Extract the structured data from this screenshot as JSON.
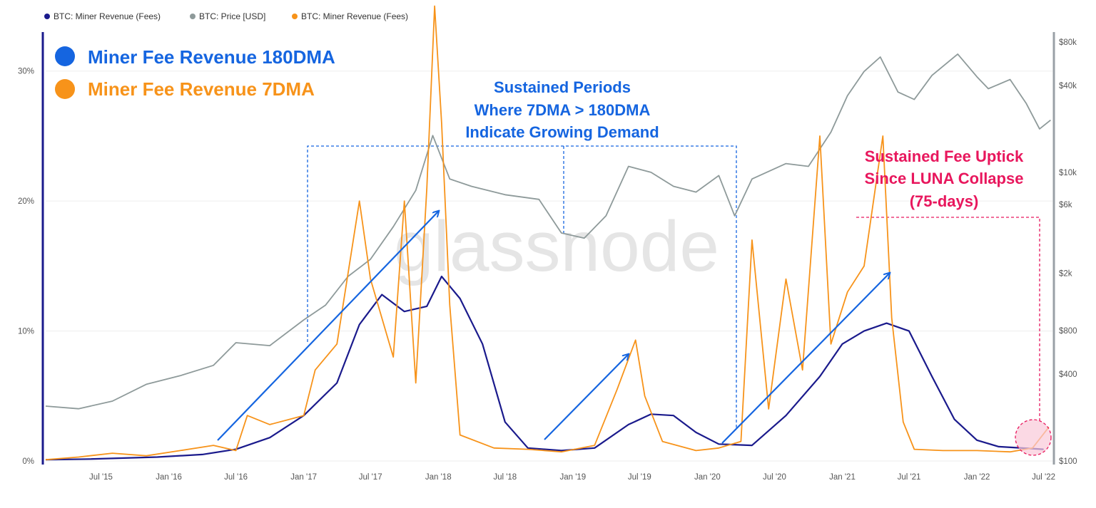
{
  "legend": {
    "items": [
      {
        "label": "BTC: Miner Revenue (Fees)",
        "color": "#1a1a8c"
      },
      {
        "label": "BTC: Price [USD]",
        "color": "#8e9a9a"
      },
      {
        "label": "BTC: Miner Revenue (Fees)",
        "color": "#f7931a"
      }
    ]
  },
  "annotations": {
    "big_legend_180": "Miner Fee Revenue 180DMA",
    "big_legend_7": "Miner Fee Revenue 7DMA",
    "sustained_lines": [
      "Sustained Periods",
      "Where 7DMA > 180DMA",
      "Indicate Growing Demand"
    ],
    "luna_lines": [
      "Sustained Fee Uptick",
      "Since LUNA Collapse",
      "(75-days)"
    ],
    "watermark": "glassnode",
    "colors": {
      "blue": "#1565e0",
      "pink": "#e8175d",
      "circle_fill": "#f9c9d8"
    }
  },
  "chart_data": {
    "type": "line",
    "x_ticks": [
      "Jul '15",
      "Jan '16",
      "Jul '16",
      "Jan '17",
      "Jul '17",
      "Jan '18",
      "Jul '18",
      "Jan '19",
      "Jul '19",
      "Jan '20",
      "Jul '20",
      "Jan '21",
      "Jul '21",
      "Jan '22",
      "Jul '22"
    ],
    "y_left_ticks": [
      "0%",
      "10%",
      "20%",
      "30%"
    ],
    "y_left_range": [
      0,
      33
    ],
    "y_right_ticks": [
      "$100",
      "$400",
      "$800",
      "$2k",
      "$6k",
      "$10k",
      "$40k",
      "$80k"
    ],
    "y_right_scale": "log",
    "y_right_range": [
      100,
      80000
    ],
    "grid": true,
    "legend_position": "top-left",
    "series": [
      {
        "name": "BTC: Miner Revenue (Fees)",
        "axis": "left",
        "color": "#1a1a8c",
        "points": [
          [
            "2015-02-01",
            0.1
          ],
          [
            "2015-06-01",
            0.15
          ],
          [
            "2015-12-01",
            0.3
          ],
          [
            "2016-04-01",
            0.5
          ],
          [
            "2016-07-01",
            0.9
          ],
          [
            "2016-10-01",
            1.8
          ],
          [
            "2017-01-01",
            3.5
          ],
          [
            "2017-04-01",
            6.0
          ],
          [
            "2017-06-01",
            10.5
          ],
          [
            "2017-08-01",
            12.8
          ],
          [
            "2017-10-01",
            11.5
          ],
          [
            "2017-12-01",
            11.9
          ],
          [
            "2018-01-10",
            14.2
          ],
          [
            "2018-03-01",
            12.5
          ],
          [
            "2018-05-01",
            9.0
          ],
          [
            "2018-07-01",
            3.0
          ],
          [
            "2018-09-01",
            1.0
          ],
          [
            "2018-12-01",
            0.8
          ],
          [
            "2019-03-01",
            1.0
          ],
          [
            "2019-06-01",
            2.8
          ],
          [
            "2019-08-01",
            3.6
          ],
          [
            "2019-10-01",
            3.5
          ],
          [
            "2019-12-01",
            2.2
          ],
          [
            "2020-02-01",
            1.3
          ],
          [
            "2020-05-01",
            1.2
          ],
          [
            "2020-08-01",
            3.5
          ],
          [
            "2020-11-01",
            6.5
          ],
          [
            "2021-01-01",
            9.0
          ],
          [
            "2021-03-01",
            10.0
          ],
          [
            "2021-05-01",
            10.6
          ],
          [
            "2021-07-01",
            10.0
          ],
          [
            "2021-09-01",
            6.5
          ],
          [
            "2021-11-01",
            3.2
          ],
          [
            "2022-01-01",
            1.6
          ],
          [
            "2022-03-01",
            1.1
          ],
          [
            "2022-07-01",
            0.9
          ]
        ]
      },
      {
        "name": "BTC: Price [USD]",
        "axis": "right",
        "color": "#8e9a9a",
        "points": [
          [
            "2015-02-01",
            240
          ],
          [
            "2015-05-01",
            230
          ],
          [
            "2015-08-01",
            260
          ],
          [
            "2015-11-01",
            340
          ],
          [
            "2016-02-01",
            390
          ],
          [
            "2016-05-01",
            460
          ],
          [
            "2016-07-01",
            660
          ],
          [
            "2016-10-01",
            630
          ],
          [
            "2017-01-01",
            950
          ],
          [
            "2017-03-01",
            1200
          ],
          [
            "2017-05-01",
            1900
          ],
          [
            "2017-07-01",
            2500
          ],
          [
            "2017-09-01",
            4200
          ],
          [
            "2017-11-01",
            7500
          ],
          [
            "2017-12-17",
            18000
          ],
          [
            "2018-02-01",
            9000
          ],
          [
            "2018-04-01",
            8000
          ],
          [
            "2018-07-01",
            7000
          ],
          [
            "2018-10-01",
            6500
          ],
          [
            "2018-12-01",
            3800
          ],
          [
            "2019-02-01",
            3500
          ],
          [
            "2019-04-01",
            5000
          ],
          [
            "2019-06-01",
            11000
          ],
          [
            "2019-08-01",
            10000
          ],
          [
            "2019-10-01",
            8000
          ],
          [
            "2019-12-01",
            7300
          ],
          [
            "2020-02-01",
            9500
          ],
          [
            "2020-03-15",
            5000
          ],
          [
            "2020-05-01",
            9000
          ],
          [
            "2020-08-01",
            11500
          ],
          [
            "2020-10-01",
            11000
          ],
          [
            "2020-12-01",
            19000
          ],
          [
            "2021-01-15",
            34000
          ],
          [
            "2021-03-01",
            50000
          ],
          [
            "2021-04-14",
            63000
          ],
          [
            "2021-06-01",
            36000
          ],
          [
            "2021-07-15",
            32000
          ],
          [
            "2021-09-01",
            47000
          ],
          [
            "2021-11-10",
            66000
          ],
          [
            "2022-01-01",
            46000
          ],
          [
            "2022-02-01",
            38000
          ],
          [
            "2022-04-01",
            44000
          ],
          [
            "2022-05-15",
            30000
          ],
          [
            "2022-06-20",
            20000
          ],
          [
            "2022-07-20",
            23000
          ]
        ]
      },
      {
        "name": "BTC: Miner Revenue (Fees)",
        "axis": "left",
        "color": "#f7931a",
        "points": [
          [
            "2015-02-01",
            0.1
          ],
          [
            "2015-05-01",
            0.3
          ],
          [
            "2015-08-01",
            0.6
          ],
          [
            "2015-11-01",
            0.4
          ],
          [
            "2016-02-01",
            0.8
          ],
          [
            "2016-05-01",
            1.2
          ],
          [
            "2016-07-01",
            0.8
          ],
          [
            "2016-08-01",
            3.5
          ],
          [
            "2016-10-01",
            2.8
          ],
          [
            "2017-01-01",
            3.5
          ],
          [
            "2017-02-01",
            7.0
          ],
          [
            "2017-04-01",
            9.0
          ],
          [
            "2017-06-01",
            20.0
          ],
          [
            "2017-07-01",
            14.0
          ],
          [
            "2017-09-01",
            8.0
          ],
          [
            "2017-10-01",
            20.0
          ],
          [
            "2017-11-01",
            6.0
          ],
          [
            "2017-12-01",
            21.0
          ],
          [
            "2017-12-22",
            35.0
          ],
          [
            "2018-01-10",
            26.0
          ],
          [
            "2018-02-01",
            12.0
          ],
          [
            "2018-03-01",
            2.0
          ],
          [
            "2018-06-01",
            1.0
          ],
          [
            "2018-09-01",
            0.9
          ],
          [
            "2018-12-01",
            0.7
          ],
          [
            "2019-03-01",
            1.2
          ],
          [
            "2019-05-01",
            5.5
          ],
          [
            "2019-06-20",
            9.3
          ],
          [
            "2019-07-15",
            5.0
          ],
          [
            "2019-09-01",
            1.5
          ],
          [
            "2019-12-01",
            0.8
          ],
          [
            "2020-02-01",
            1.0
          ],
          [
            "2020-04-01",
            1.5
          ],
          [
            "2020-05-01",
            17.0
          ],
          [
            "2020-06-15",
            4.0
          ],
          [
            "2020-08-01",
            14.0
          ],
          [
            "2020-09-15",
            7.0
          ],
          [
            "2020-11-01",
            25.0
          ],
          [
            "2020-12-01",
            9.0
          ],
          [
            "2021-01-15",
            13.0
          ],
          [
            "2021-03-01",
            15.0
          ],
          [
            "2021-04-21",
            25.0
          ],
          [
            "2021-05-15",
            11.0
          ],
          [
            "2021-06-15",
            3.0
          ],
          [
            "2021-07-15",
            0.9
          ],
          [
            "2021-10-01",
            0.8
          ],
          [
            "2022-01-01",
            0.8
          ],
          [
            "2022-04-01",
            0.7
          ],
          [
            "2022-06-01",
            1.0
          ],
          [
            "2022-07-15",
            2.6
          ]
        ]
      }
    ]
  }
}
